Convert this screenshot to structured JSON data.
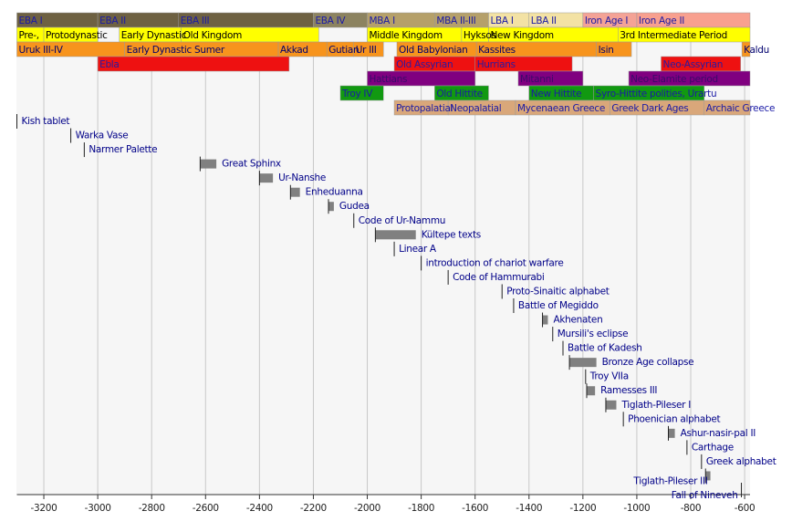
{
  "chart_data": {
    "type": "timeline",
    "xlim": [
      -3300,
      -580
    ],
    "xticks": [
      -3200,
      -3000,
      -2800,
      -2600,
      -2400,
      -2200,
      -2000,
      -1800,
      -1600,
      -1400,
      -1200,
      -1000,
      -800,
      -600
    ],
    "grid": true,
    "rows": [
      {
        "text_color": "#1a1aa6",
        "periods": [
          {
            "label": "EBA I",
            "start": -3300,
            "end": -3000,
            "color": "#6e6142"
          },
          {
            "label": "EBA II",
            "start": -3000,
            "end": -2700,
            "color": "#6e6142"
          },
          {
            "label": "EBA III",
            "start": -2700,
            "end": -2200,
            "color": "#6e6142"
          },
          {
            "label": "EBA IV",
            "start": -2200,
            "end": -2000,
            "color": "#8c8360"
          },
          {
            "label": "MBA I",
            "start": -2000,
            "end": -1750,
            "color": "#b5a06a"
          },
          {
            "label": "MBA II-III",
            "start": -1750,
            "end": -1550,
            "color": "#b5a06a"
          },
          {
            "label": "LBA I",
            "start": -1550,
            "end": -1400,
            "color": "#f3e2a4"
          },
          {
            "label": "LBA II",
            "start": -1400,
            "end": -1200,
            "color": "#f3e2a4"
          },
          {
            "label": "Iron Age I",
            "start": -1200,
            "end": -1000,
            "color": "#f4a396"
          },
          {
            "label": "Iron Age II",
            "start": -1000,
            "end": -580,
            "color": "#f8a08f"
          }
        ]
      },
      {
        "text_color": "#000000",
        "periods": [
          {
            "label": "Pre-,",
            "start": -3300,
            "end": -3200,
            "color": "#ffff00"
          },
          {
            "label": "Protodynastic",
            "start": -3200,
            "end": -3000,
            "color": "#ffff00"
          },
          {
            "label": "Early Dynastic",
            "start": -2920,
            "end": -2690,
            "color": "#ffff00"
          },
          {
            "label": "Old Kingdom",
            "start": -2690,
            "end": -2180,
            "color": "#ffff00"
          },
          {
            "label": "Middle Kingdom",
            "start": -2000,
            "end": -1650,
            "color": "#ffff00"
          },
          {
            "label": "Hyksos",
            "start": -1650,
            "end": -1550,
            "color": "#ffff00"
          },
          {
            "label": "New Kingdom",
            "start": -1550,
            "end": -1070,
            "color": "#ffff00"
          },
          {
            "label": "3rd Intermediate Period",
            "start": -1070,
            "end": -580,
            "color": "#ffff00"
          }
        ]
      },
      {
        "text_color": "#00006e",
        "periods": [
          {
            "label": "Uruk III-IV",
            "start": -3300,
            "end": -2900,
            "color": "#f7941d"
          },
          {
            "label": "Early Dynastic Sumer",
            "start": -2900,
            "end": -2330,
            "color": "#f7941d"
          },
          {
            "label": "Akkad",
            "start": -2330,
            "end": -2150,
            "color": "#f7941d"
          },
          {
            "label": "Gutian",
            "start": -2150,
            "end": -2050,
            "color": "#f7941d"
          },
          {
            "label": "Ur III",
            "start": -2050,
            "end": -1940,
            "color": "#f7941d"
          },
          {
            "label": "Old Babylonian",
            "start": -1890,
            "end": -1595,
            "color": "#f7941d"
          },
          {
            "label": "Kassites",
            "start": -1595,
            "end": -1150,
            "color": "#f7941d"
          },
          {
            "label": "Isin",
            "start": -1150,
            "end": -1020,
            "color": "#f7941d"
          },
          {
            "label": "Kaldu",
            "start": -610,
            "end": -580,
            "color": "#f7941d"
          }
        ]
      },
      {
        "text_color": "#2a1aa0",
        "periods": [
          {
            "label": "Ebla",
            "start": -3000,
            "end": -2290,
            "color": "#ee1111"
          },
          {
            "label": "Old Assyrian",
            "start": -1900,
            "end": -1600,
            "color": "#ee1111"
          },
          {
            "label": "Hurrians",
            "start": -1600,
            "end": -1240,
            "color": "#ee1111"
          },
          {
            "label": "Neo-Assyrian",
            "start": -910,
            "end": -615,
            "color": "#ee1111"
          }
        ]
      },
      {
        "text_color": "#3a0a6a",
        "periods": [
          {
            "label": "Hattians",
            "start": -2000,
            "end": -1600,
            "color": "#800080"
          },
          {
            "label": "Mitanni",
            "start": -1440,
            "end": -1200,
            "color": "#800080"
          },
          {
            "label": "Neo-Elamite period",
            "start": -1030,
            "end": -580,
            "color": "#800080"
          }
        ]
      },
      {
        "text_color": "#1a1aa6",
        "periods": [
          {
            "label": "Troy IV",
            "start": -2100,
            "end": -1940,
            "color": "#119911"
          },
          {
            "label": "Old Hittite",
            "start": -1750,
            "end": -1550,
            "color": "#119911"
          },
          {
            "label": "New Hittite",
            "start": -1400,
            "end": -1160,
            "color": "#119911"
          },
          {
            "label": "Syro-Hittite polities, Urartu",
            "start": -1160,
            "end": -750,
            "color": "#119911"
          }
        ]
      },
      {
        "text_color": "#1a1aa6",
        "periods": [
          {
            "label": "Protopalatial",
            "start": -1900,
            "end": -1700,
            "color": "#d9a77a"
          },
          {
            "label": "Neopalatial",
            "start": -1700,
            "end": -1450,
            "color": "#d9a77a"
          },
          {
            "label": "Mycenaean Greece",
            "start": -1450,
            "end": -1100,
            "color": "#d9a77a"
          },
          {
            "label": "Greek Dark Ages",
            "start": -1100,
            "end": -750,
            "color": "#d9a77a"
          },
          {
            "label": "Archaic Greece",
            "start": -750,
            "end": -580,
            "color": "#d9a77a"
          }
        ]
      }
    ],
    "event_color": "#808080",
    "events": [
      {
        "label": "Kish tablet",
        "year": -3300
      },
      {
        "label": "Warka Vase",
        "year": -3100
      },
      {
        "label": "Narmer Palette",
        "year": -3050
      },
      {
        "label": "Great Sphinx",
        "start": -2620,
        "end": -2560
      },
      {
        "label": "Ur-Nanshe",
        "start": -2400,
        "end": -2350
      },
      {
        "label": "Enheduanna",
        "start": -2285,
        "end": -2250
      },
      {
        "label": "Gudea",
        "start": -2144,
        "end": -2124
      },
      {
        "label": "Code of Ur-Nammu",
        "year": -2050
      },
      {
        "label": "Kültepe texts",
        "start": -1970,
        "end": -1820
      },
      {
        "label": "Linear A",
        "year": -1900
      },
      {
        "label": "introduction of chariot warfare",
        "year": -1800
      },
      {
        "label": "Code of Hammurabi",
        "year": -1700
      },
      {
        "label": "Proto-Sinaitic alphabet",
        "year": -1500
      },
      {
        "label": "Battle of Megiddo",
        "year": -1457
      },
      {
        "label": "Akhenaten",
        "start": -1350,
        "end": -1330
      },
      {
        "label": "Mursili's eclipse",
        "year": -1312
      },
      {
        "label": "Battle of Kadesh",
        "year": -1274
      },
      {
        "label": "Bronze Age collapse",
        "start": -1250,
        "end": -1150
      },
      {
        "label": "Troy VIIa",
        "year": -1190
      },
      {
        "label": "Ramesses III",
        "start": -1186,
        "end": -1155
      },
      {
        "label": "Tiglath-Pileser I",
        "start": -1115,
        "end": -1076
      },
      {
        "label": "Phoenician alphabet",
        "year": -1050
      },
      {
        "label": "Ashur-nasir-pal II",
        "start": -883,
        "end": -859
      },
      {
        "label": "Carthage",
        "year": -814
      },
      {
        "label": "Greek alphabet",
        "year": -760
      },
      {
        "label": "Tiglath-Pileser III",
        "start": -745,
        "end": -727
      },
      {
        "label": "Fall of Nineveh",
        "year": -612
      }
    ]
  }
}
